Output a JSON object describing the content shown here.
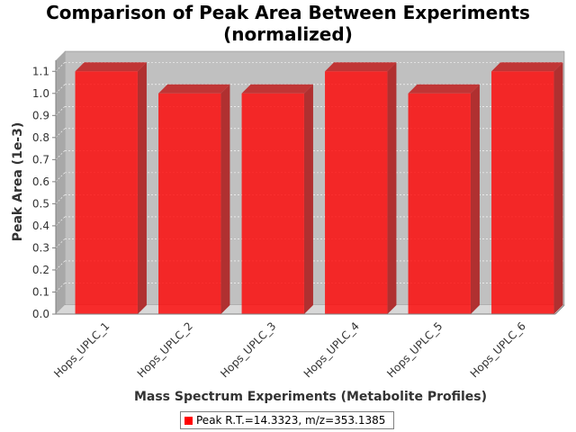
{
  "chart_data": {
    "type": "bar",
    "title_lines": [
      "Comparison of Peak Area Between Experiments",
      "(normalized)"
    ],
    "xlabel": "Mass Spectrum Experiments (Metabolite Profiles)",
    "ylabel": "Peak Area (1e-3)",
    "categories": [
      "Hops_UPLC_1",
      "Hops_UPLC_2",
      "Hops_UPLC_3",
      "Hops_UPLC_4",
      "Hops_UPLC_5",
      "Hops_UPLC_6"
    ],
    "series": [
      {
        "name": "Peak R.T.=14.3323, m/z=353.1385",
        "values": [
          1.1,
          1.0,
          1.0,
          1.1,
          1.0,
          1.1
        ],
        "color": "#ff0000"
      }
    ],
    "ylim": [
      0,
      1.15
    ],
    "yticks": [
      "0.0",
      "0.1",
      "0.2",
      "0.3",
      "0.4",
      "0.5",
      "0.6",
      "0.7",
      "0.8",
      "0.9",
      "1.0",
      "1.1"
    ],
    "grid": true,
    "legend_position": "bottom",
    "plot_background": "#c0c0c0"
  }
}
